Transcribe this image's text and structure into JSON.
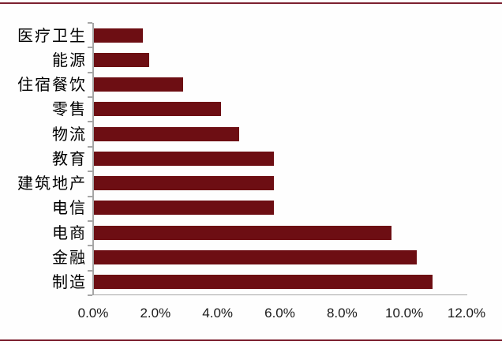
{
  "frame": {
    "rule_color": "#7c2130",
    "background": "#fefefe"
  },
  "chart_data": {
    "type": "bar",
    "orientation": "horizontal",
    "title": "",
    "categories": [
      "医疗卫生",
      "能源",
      "住宿餐饮",
      "零售",
      "物流",
      "教育",
      "建筑地产",
      "电信",
      "电商",
      "金融",
      "制造"
    ],
    "values": [
      1.6,
      1.8,
      2.9,
      4.1,
      4.7,
      5.8,
      5.8,
      5.8,
      9.6,
      10.4,
      10.9
    ],
    "value_unit": "%",
    "x_ticks": [
      "0.0%",
      "2.0%",
      "4.0%",
      "6.0%",
      "8.0%",
      "10.0%",
      "12.0%"
    ],
    "x_tick_values": [
      0,
      2,
      4,
      6,
      8,
      10,
      12
    ],
    "xlim": [
      0,
      12
    ],
    "xlabel": "",
    "ylabel": "",
    "grid": false,
    "legend": false,
    "bar_color": "#6d0e13",
    "axis_color": "#a6a6a6",
    "tick_label_color": "#1a1a1a",
    "category_label_color": "#000000"
  }
}
